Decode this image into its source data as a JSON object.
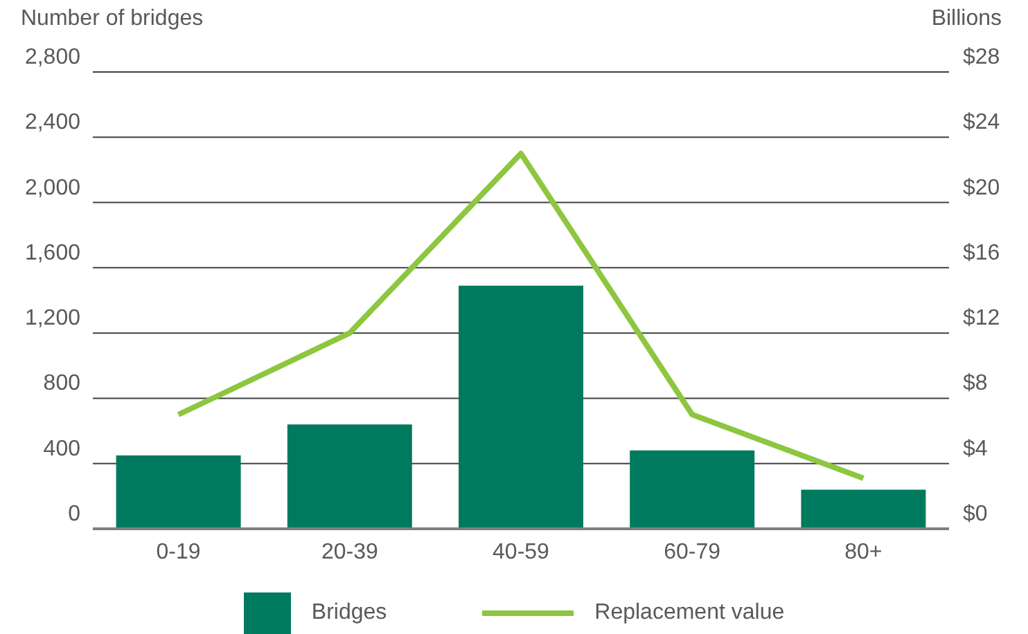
{
  "chart_data": {
    "type": "bar",
    "categories": [
      "0-19",
      "20-39",
      "40-59",
      "60-79",
      "80+"
    ],
    "ylabel": "Number of bridges",
    "y2label": "Billions",
    "series": [
      {
        "name": "Bridges",
        "color": "#007a5e",
        "values": [
          450,
          640,
          1490,
          480,
          240
        ]
      },
      {
        "name": "Replacement value",
        "type": "line",
        "axis": "y2",
        "color": "#8dc63f",
        "values": [
          7,
          12,
          23,
          7,
          3.1
        ]
      }
    ],
    "ylim": [
      0,
      2800
    ],
    "yticks": [
      0,
      400,
      800,
      {
        "value": 1200,
        "label": "1,200"
      },
      {
        "value": 1600,
        "label": "1,600"
      },
      {
        "value": 2000,
        "label": "2,000"
      },
      {
        "value": 2400,
        "label": "2,400"
      },
      {
        "value": 2800,
        "label": "2,800"
      }
    ],
    "y2lim": [
      0,
      28
    ],
    "y2ticks": [
      {
        "value": 0,
        "label": "$0"
      },
      {
        "value": 4,
        "label": "$4"
      },
      {
        "value": 8,
        "label": "$8"
      },
      {
        "value": 12,
        "label": "$12"
      },
      {
        "value": 16,
        "label": "$16"
      },
      {
        "value": 20,
        "label": "$20"
      },
      {
        "value": 24,
        "label": "$24"
      },
      {
        "value": 28,
        "label": "$28"
      }
    ],
    "grid": "y",
    "legend": "bottom"
  }
}
